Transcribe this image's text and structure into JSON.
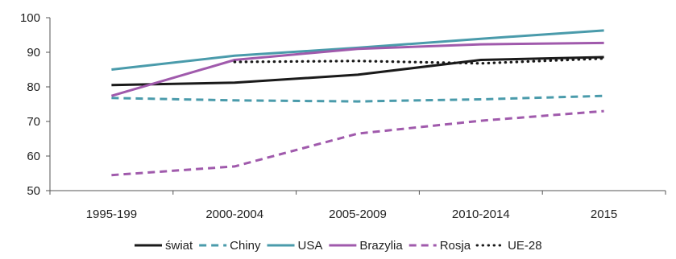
{
  "chart_data": {
    "type": "line",
    "categories": [
      "1995-199",
      "2000-2004",
      "2005-2009",
      "2010-2014",
      "2015"
    ],
    "ylim": [
      50,
      100
    ],
    "yticks": [
      50,
      60,
      70,
      80,
      90,
      100
    ],
    "grid": false,
    "legend_position": "bottom",
    "series": [
      {
        "name": "świat",
        "values": [
          80.5,
          81.2,
          83.5,
          87.8,
          88.6
        ],
        "color": "#1a1a1a",
        "style": "solid"
      },
      {
        "name": "Chiny",
        "values": [
          76.8,
          76.1,
          75.8,
          76.4,
          77.4
        ],
        "color": "#4a9bab",
        "style": "dashed"
      },
      {
        "name": "USA",
        "values": [
          85.0,
          89.0,
          91.3,
          93.9,
          96.3
        ],
        "color": "#4a9bab",
        "style": "solid"
      },
      {
        "name": "Brazylia",
        "values": [
          77.4,
          87.8,
          91.0,
          92.3,
          92.7
        ],
        "color": "#a05aac",
        "style": "solid"
      },
      {
        "name": "Rosja",
        "values": [
          54.5,
          57.0,
          66.5,
          70.2,
          73.0
        ],
        "color": "#a05aac",
        "style": "dashed"
      },
      {
        "name": "UE-28",
        "values": [
          null,
          87.2,
          87.5,
          86.8,
          88.2
        ],
        "color": "#1a1a1a",
        "style": "dotted"
      }
    ]
  }
}
